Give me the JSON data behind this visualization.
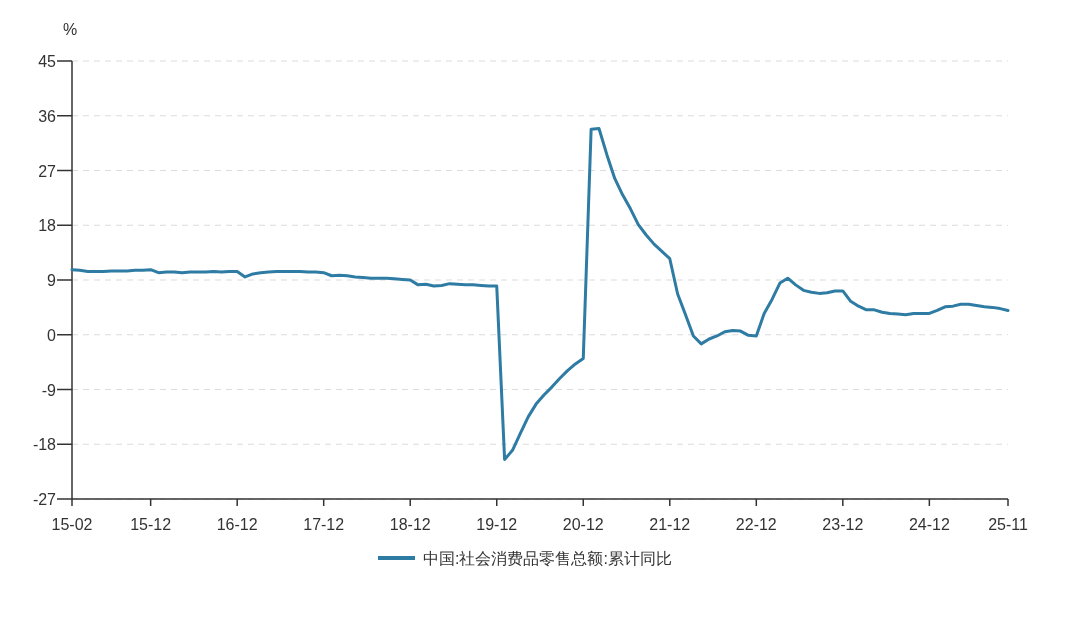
{
  "chart_data": {
    "type": "line",
    "ylabel": "%",
    "categories": [
      "15-02",
      null,
      null,
      null,
      null,
      null,
      null,
      null,
      null,
      null,
      "15-12",
      null,
      null,
      null,
      null,
      null,
      null,
      null,
      null,
      null,
      null,
      "16-12",
      null,
      null,
      null,
      null,
      null,
      null,
      null,
      null,
      null,
      null,
      "17-12",
      null,
      null,
      null,
      null,
      null,
      null,
      null,
      null,
      null,
      null,
      "18-12",
      null,
      null,
      null,
      null,
      null,
      null,
      null,
      null,
      null,
      null,
      "19-12",
      null,
      null,
      null,
      null,
      null,
      null,
      null,
      null,
      null,
      null,
      "20-12",
      null,
      null,
      null,
      null,
      null,
      null,
      null,
      null,
      null,
      null,
      "21-12",
      null,
      null,
      null,
      null,
      null,
      null,
      null,
      null,
      null,
      null,
      "22-12",
      null,
      null,
      null,
      null,
      null,
      null,
      null,
      null,
      null,
      null,
      "23-12",
      null,
      null,
      null,
      null,
      null,
      null,
      null,
      null,
      null,
      null,
      "24-12",
      null,
      null,
      null,
      null,
      null,
      null,
      null,
      null,
      null,
      "25-11"
    ],
    "series": [
      {
        "name": "中国:社会消费品零售总额:累计同比",
        "color": "#2e7ba3",
        "values": [
          10.7,
          10.6,
          10.4,
          10.4,
          10.4,
          10.5,
          10.5,
          10.5,
          10.6,
          10.6,
          10.7,
          10.2,
          10.3,
          10.3,
          10.2,
          10.3,
          10.3,
          10.3,
          10.4,
          10.3,
          10.4,
          10.4,
          9.5,
          10.0,
          10.2,
          10.3,
          10.4,
          10.4,
          10.4,
          10.4,
          10.3,
          10.3,
          10.2,
          9.7,
          9.8,
          9.7,
          9.5,
          9.4,
          9.3,
          9.3,
          9.3,
          9.2,
          9.1,
          9.0,
          8.2,
          8.3,
          8.0,
          8.1,
          8.4,
          8.3,
          8.2,
          8.2,
          8.1,
          8.0,
          8.0,
          -20.5,
          -19.0,
          -16.2,
          -13.5,
          -11.4,
          -9.9,
          -8.6,
          -7.2,
          -5.9,
          -4.8,
          -3.9,
          33.8,
          33.9,
          29.6,
          25.7,
          23.0,
          20.7,
          18.1,
          16.4,
          14.9,
          13.7,
          12.5,
          6.7,
          3.3,
          -0.2,
          -1.5,
          -0.7,
          -0.2,
          0.5,
          0.7,
          0.6,
          -0.1,
          -0.2,
          3.5,
          5.8,
          8.5,
          9.3,
          8.2,
          7.3,
          7.0,
          6.8,
          6.9,
          7.2,
          7.2,
          5.5,
          4.7,
          4.1,
          4.1,
          3.7,
          3.5,
          3.4,
          3.3,
          3.5,
          3.5,
          3.5,
          4.0,
          4.6,
          4.7,
          5.0,
          5.0,
          4.8,
          4.6,
          4.5,
          4.3,
          4.0
        ]
      }
    ],
    "ylim": [
      -27,
      45
    ],
    "yticks": [
      -27,
      -18,
      -9,
      0,
      9,
      18,
      27,
      36,
      45
    ],
    "grid": "y",
    "legend": "bottom",
    "line_style": "solid"
  }
}
